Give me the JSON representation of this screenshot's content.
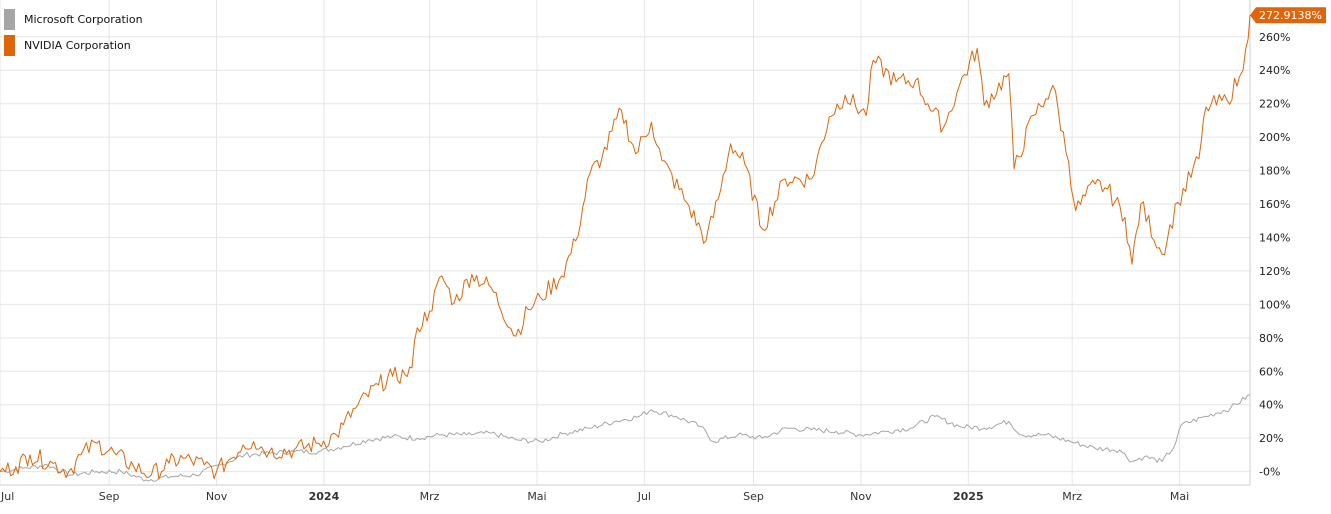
{
  "legend": {
    "items": [
      {
        "label": "Microsoft Corporation",
        "color": "#a6a6a6"
      },
      {
        "label": "NVIDIA Corporation",
        "color": "#e0650a"
      }
    ]
  },
  "last_value_badge": "272.9138%",
  "chart_data": {
    "type": "line",
    "y_unit": "%",
    "x_range": [
      "2023-07-01",
      "2025-06-10"
    ],
    "ylim": [
      -8,
      282
    ],
    "grid": true,
    "legend_position": "top-left",
    "x_ticks": [
      {
        "label": "Jul",
        "date": "2023-07-01"
      },
      {
        "label": "Sep",
        "date": "2023-09-01"
      },
      {
        "label": "Nov",
        "date": "2023-11-01"
      },
      {
        "label": "2024",
        "date": "2024-01-01",
        "bold": true
      },
      {
        "label": "Mrz",
        "date": "2024-03-01"
      },
      {
        "label": "Mai",
        "date": "2024-05-01"
      },
      {
        "label": "Jul",
        "date": "2024-07-01"
      },
      {
        "label": "Sep",
        "date": "2024-09-01"
      },
      {
        "label": "Nov",
        "date": "2024-11-01"
      },
      {
        "label": "2025",
        "date": "2025-01-01",
        "bold": true
      },
      {
        "label": "Mrz",
        "date": "2025-03-01"
      },
      {
        "label": "Mai",
        "date": "2025-05-01"
      }
    ],
    "y_ticks": [
      {
        "value": 0,
        "label": "-0%"
      },
      {
        "value": 20,
        "label": "20%"
      },
      {
        "value": 40,
        "label": "40%"
      },
      {
        "value": 60,
        "label": "60%"
      },
      {
        "value": 80,
        "label": "80%"
      },
      {
        "value": 100,
        "label": "100%"
      },
      {
        "value": 120,
        "label": "120%"
      },
      {
        "value": 140,
        "label": "140%"
      },
      {
        "value": 160,
        "label": "160%"
      },
      {
        "value": 180,
        "label": "180%"
      },
      {
        "value": 200,
        "label": "200%"
      },
      {
        "value": 220,
        "label": "220%"
      },
      {
        "value": 240,
        "label": "240%"
      },
      {
        "value": 260,
        "label": "260%"
      }
    ],
    "series": [
      {
        "name": "Microsoft Corporation",
        "color": "#a6a6a6",
        "points": [
          [
            "2023-07-01",
            0
          ],
          [
            "2023-07-14",
            2
          ],
          [
            "2023-07-28",
            4
          ],
          [
            "2023-08-10",
            -2
          ],
          [
            "2023-08-25",
            0
          ],
          [
            "2023-09-08",
            0
          ],
          [
            "2023-09-22",
            -5
          ],
          [
            "2023-10-06",
            -3
          ],
          [
            "2023-10-20",
            -2
          ],
          [
            "2023-11-03",
            4
          ],
          [
            "2023-11-17",
            10
          ],
          [
            "2023-12-01",
            11
          ],
          [
            "2023-12-15",
            12
          ],
          [
            "2023-12-29",
            12
          ],
          [
            "2024-01-12",
            15
          ],
          [
            "2024-01-26",
            19
          ],
          [
            "2024-02-09",
            21
          ],
          [
            "2024-02-23",
            20
          ],
          [
            "2024-03-08",
            22
          ],
          [
            "2024-03-22",
            22
          ],
          [
            "2024-04-05",
            23
          ],
          [
            "2024-04-19",
            19
          ],
          [
            "2024-05-03",
            18
          ],
          [
            "2024-05-17",
            23
          ],
          [
            "2024-05-31",
            26
          ],
          [
            "2024-06-14",
            30
          ],
          [
            "2024-06-28",
            33
          ],
          [
            "2024-07-05",
            37
          ],
          [
            "2024-07-19",
            33
          ],
          [
            "2024-08-02",
            27
          ],
          [
            "2024-08-09",
            18
          ],
          [
            "2024-08-23",
            22
          ],
          [
            "2024-09-06",
            20
          ],
          [
            "2024-09-20",
            26
          ],
          [
            "2024-10-04",
            25
          ],
          [
            "2024-10-18",
            24
          ],
          [
            "2024-11-01",
            22
          ],
          [
            "2024-11-15",
            24
          ],
          [
            "2024-11-29",
            26
          ],
          [
            "2024-12-13",
            33
          ],
          [
            "2024-12-27",
            27
          ],
          [
            "2025-01-10",
            26
          ],
          [
            "2025-01-24",
            30
          ],
          [
            "2025-01-31",
            22
          ],
          [
            "2025-02-14",
            22
          ],
          [
            "2025-02-28",
            18
          ],
          [
            "2025-03-14",
            14
          ],
          [
            "2025-03-28",
            13
          ],
          [
            "2025-04-04",
            6
          ],
          [
            "2025-04-11",
            9
          ],
          [
            "2025-04-21",
            6
          ],
          [
            "2025-04-28",
            15
          ],
          [
            "2025-05-02",
            28
          ],
          [
            "2025-05-16",
            33
          ],
          [
            "2025-05-30",
            38
          ],
          [
            "2025-06-10",
            46
          ]
        ]
      },
      {
        "name": "NVIDIA Corporation",
        "color": "#e0650a",
        "points": [
          [
            "2023-07-01",
            0
          ],
          [
            "2023-07-10",
            3
          ],
          [
            "2023-07-18",
            10
          ],
          [
            "2023-07-31",
            5
          ],
          [
            "2023-08-09",
            0
          ],
          [
            "2023-08-16",
            10
          ],
          [
            "2023-08-25",
            17
          ],
          [
            "2023-09-05",
            10
          ],
          [
            "2023-09-15",
            3
          ],
          [
            "2023-09-25",
            -2
          ],
          [
            "2023-10-05",
            5
          ],
          [
            "2023-10-13",
            8
          ],
          [
            "2023-10-25",
            4
          ],
          [
            "2023-11-01",
            0
          ],
          [
            "2023-11-08",
            7
          ],
          [
            "2023-11-16",
            16
          ],
          [
            "2023-11-22",
            18
          ],
          [
            "2023-12-01",
            12
          ],
          [
            "2023-12-15",
            13
          ],
          [
            "2023-12-29",
            17
          ],
          [
            "2024-01-08",
            22
          ],
          [
            "2024-01-12",
            28
          ],
          [
            "2024-01-19",
            38
          ],
          [
            "2024-02-01",
            52
          ],
          [
            "2024-02-09",
            57
          ],
          [
            "2024-02-16",
            58
          ],
          [
            "2024-02-20",
            62
          ],
          [
            "2024-02-23",
            86
          ],
          [
            "2024-03-01",
            96
          ],
          [
            "2024-03-08",
            117
          ],
          [
            "2024-03-15",
            101
          ],
          [
            "2024-03-25",
            118
          ],
          [
            "2024-04-05",
            110
          ],
          [
            "2024-04-19",
            81
          ],
          [
            "2024-04-26",
            97
          ],
          [
            "2024-05-03",
            104
          ],
          [
            "2024-05-15",
            117
          ],
          [
            "2024-05-23",
            138
          ],
          [
            "2024-05-31",
            178
          ],
          [
            "2024-06-07",
            188
          ],
          [
            "2024-06-18",
            216
          ],
          [
            "2024-06-26",
            190
          ],
          [
            "2024-07-05",
            209
          ],
          [
            "2024-07-11",
            186
          ],
          [
            "2024-07-25",
            161
          ],
          [
            "2024-08-05",
            138
          ],
          [
            "2024-08-12",
            163
          ],
          [
            "2024-08-19",
            196
          ],
          [
            "2024-08-27",
            184
          ],
          [
            "2024-09-06",
            145
          ],
          [
            "2024-09-19",
            175
          ],
          [
            "2024-10-04",
            175
          ],
          [
            "2024-10-14",
            212
          ],
          [
            "2024-10-23",
            225
          ],
          [
            "2024-11-04",
            213
          ],
          [
            "2024-11-08",
            246
          ],
          [
            "2024-11-21",
            233
          ],
          [
            "2024-12-02",
            234
          ],
          [
            "2024-12-09",
            220
          ],
          [
            "2024-12-18",
            206
          ],
          [
            "2024-12-27",
            231
          ],
          [
            "2025-01-06",
            253
          ],
          [
            "2025-01-10",
            219
          ],
          [
            "2025-01-24",
            238
          ],
          [
            "2025-01-27",
            181
          ],
          [
            "2025-02-07",
            213
          ],
          [
            "2025-02-14",
            223
          ],
          [
            "2025-02-18",
            231
          ],
          [
            "2025-02-27",
            185
          ],
          [
            "2025-03-03",
            156
          ],
          [
            "2025-03-14",
            172
          ],
          [
            "2025-03-21",
            169
          ],
          [
            "2025-03-31",
            152
          ],
          [
            "2025-04-04",
            124
          ],
          [
            "2025-04-09",
            160
          ],
          [
            "2025-04-21",
            130
          ],
          [
            "2025-04-30",
            161
          ],
          [
            "2025-05-12",
            187
          ],
          [
            "2025-05-16",
            218
          ],
          [
            "2025-05-28",
            222
          ],
          [
            "2025-06-04",
            236
          ],
          [
            "2025-06-06",
            240
          ],
          [
            "2025-06-09",
            259
          ],
          [
            "2025-06-10",
            272.9138
          ]
        ]
      }
    ]
  }
}
